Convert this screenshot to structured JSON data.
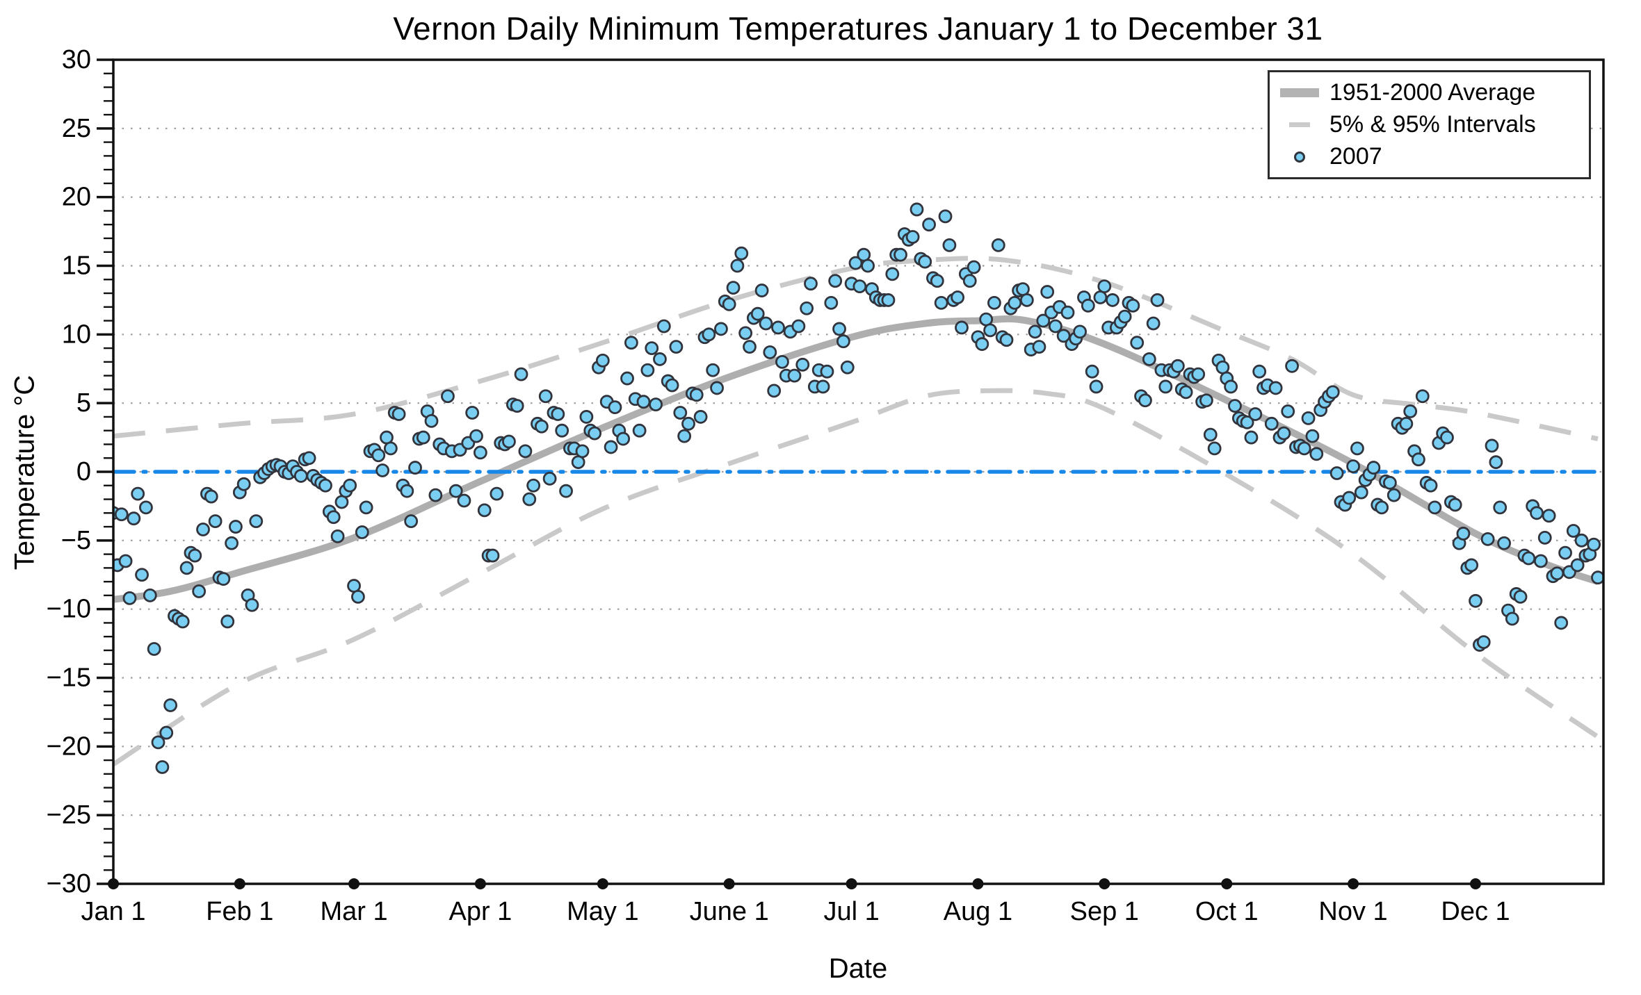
{
  "chart_data": {
    "type": "scatter",
    "title": "Vernon Daily Minimum Temperatures January 1 to December 31",
    "xlabel": "Date",
    "ylabel": "Temperature °C",
    "ylim": [
      -30,
      30
    ],
    "y_major_step": 5,
    "y_minor_step": 1,
    "grid": "dotted horizontal at every 5 °C",
    "legend": {
      "position": "top-right",
      "entries": [
        "1951-2000 Average",
        "5% & 95% Intervals",
        "2007"
      ]
    },
    "colors": {
      "scatter_fill": "#79CEF2",
      "scatter_edge": "#31343C",
      "average_line": "#aeaeae",
      "interval_line": "#c9c9c9",
      "zero_line": "#1787E8",
      "grid_line": "#8a8a8a",
      "axis": "#111111"
    },
    "y_ticks": [
      {
        "v": 30,
        "label": "30"
      },
      {
        "v": 25,
        "label": "25"
      },
      {
        "v": 20,
        "label": "20"
      },
      {
        "v": 15,
        "label": "15"
      },
      {
        "v": 10,
        "label": "10"
      },
      {
        "v": 5,
        "label": "5"
      },
      {
        "v": 0,
        "label": "0"
      },
      {
        "v": -5,
        "label": "−5"
      },
      {
        "v": -10,
        "label": "−10"
      },
      {
        "v": -15,
        "label": "−15"
      },
      {
        "v": -20,
        "label": "−20"
      },
      {
        "v": -25,
        "label": "−25"
      },
      {
        "v": -30,
        "label": "−30"
      }
    ],
    "x_ticks": [
      {
        "day": 1,
        "label": "Jan 1"
      },
      {
        "day": 32,
        "label": "Feb 1"
      },
      {
        "day": 60,
        "label": "Mar 1"
      },
      {
        "day": 91,
        "label": "Apr 1"
      },
      {
        "day": 121,
        "label": "May 1"
      },
      {
        "day": 152,
        "label": "June 1"
      },
      {
        "day": 182,
        "label": "Jul 1"
      },
      {
        "day": 213,
        "label": "Aug 1"
      },
      {
        "day": 244,
        "label": "Sep 1"
      },
      {
        "day": 274,
        "label": "Oct 1"
      },
      {
        "day": 305,
        "label": "Nov 1"
      },
      {
        "day": 335,
        "label": "Dec 1"
      }
    ],
    "series": [
      {
        "name": "1951-2000 Average",
        "type": "line",
        "style": "thick-solid",
        "points": [
          [
            1,
            -9.3
          ],
          [
            15,
            -8.7
          ],
          [
            32,
            -7.3
          ],
          [
            60,
            -4.8
          ],
          [
            91,
            -0.7
          ],
          [
            121,
            3.2
          ],
          [
            152,
            6.9
          ],
          [
            182,
            9.8
          ],
          [
            200,
            10.8
          ],
          [
            213,
            11.0
          ],
          [
            225,
            11.0
          ],
          [
            244,
            9.3
          ],
          [
            274,
            5.2
          ],
          [
            305,
            0.6
          ],
          [
            335,
            -4.5
          ],
          [
            352,
            -6.7
          ],
          [
            365,
            -8.0
          ]
        ]
      },
      {
        "name": "95% Interval",
        "type": "line",
        "style": "dashed",
        "points": [
          [
            1,
            2.6
          ],
          [
            32,
            3.5
          ],
          [
            60,
            4.2
          ],
          [
            91,
            6.6
          ],
          [
            121,
            9.4
          ],
          [
            152,
            12.5
          ],
          [
            182,
            14.8
          ],
          [
            200,
            15.4
          ],
          [
            220,
            15.4
          ],
          [
            244,
            13.8
          ],
          [
            274,
            10.2
          ],
          [
            290,
            8.2
          ],
          [
            305,
            5.6
          ],
          [
            320,
            4.9
          ],
          [
            335,
            4.3
          ],
          [
            365,
            2.4
          ]
        ]
      },
      {
        "name": "5% Interval",
        "type": "line",
        "style": "dashed",
        "points": [
          [
            1,
            -21.3
          ],
          [
            32,
            -15.4
          ],
          [
            60,
            -12.2
          ],
          [
            91,
            -7.4
          ],
          [
            121,
            -2.7
          ],
          [
            152,
            0.6
          ],
          [
            182,
            3.6
          ],
          [
            200,
            5.5
          ],
          [
            215,
            5.9
          ],
          [
            230,
            5.7
          ],
          [
            244,
            4.6
          ],
          [
            274,
            -0.2
          ],
          [
            305,
            -6.0
          ],
          [
            335,
            -13.2
          ],
          [
            365,
            -19.3
          ]
        ]
      },
      {
        "name": "Zero reference",
        "type": "hline",
        "style": "dash-dot",
        "value": 0
      },
      {
        "name": "2007",
        "type": "scatter",
        "daily_min_c": [
          -3.0,
          -6.8,
          -3.1,
          -6.5,
          -9.2,
          -3.4,
          -1.6,
          -7.5,
          -2.6,
          -9.0,
          -12.9,
          -19.7,
          -21.5,
          -19.0,
          -17.0,
          -10.5,
          -10.7,
          -10.9,
          -7.0,
          -5.9,
          -6.1,
          -8.7,
          -4.2,
          -1.6,
          -1.8,
          -3.6,
          -7.7,
          -7.8,
          -10.9,
          -5.2,
          -4.0,
          -1.5,
          -0.9,
          -9.0,
          -9.7,
          -3.6,
          -0.4,
          -0.1,
          0.2,
          0.4,
          0.5,
          0.4,
          0.0,
          -0.1,
          0.4,
          0.0,
          -0.3,
          0.9,
          1.0,
          -0.3,
          -0.6,
          -0.8,
          -1.0,
          -2.9,
          -3.3,
          -4.7,
          -2.2,
          -1.4,
          -1.0,
          -8.3,
          -9.1,
          -4.4,
          -2.6,
          1.5,
          1.6,
          1.2,
          0.1,
          2.5,
          1.7,
          4.3,
          4.2,
          -1.0,
          -1.4,
          -3.6,
          0.3,
          2.4,
          2.5,
          4.4,
          3.7,
          -1.7,
          2.0,
          1.7,
          5.5,
          1.5,
          -1.4,
          1.6,
          -2.1,
          2.1,
          4.3,
          2.6,
          1.4,
          -2.8,
          -6.1,
          -6.1,
          -1.6,
          2.1,
          2.0,
          2.2,
          4.9,
          4.8,
          7.1,
          1.5,
          -2.0,
          -1.0,
          3.5,
          3.3,
          5.5,
          -0.5,
          4.3,
          4.2,
          3.0,
          -1.4,
          1.7,
          1.7,
          0.7,
          1.5,
          4.0,
          3.0,
          2.8,
          7.6,
          8.1,
          5.1,
          1.8,
          4.7,
          3.0,
          2.4,
          6.8,
          9.4,
          5.3,
          3.0,
          5.1,
          7.4,
          9.0,
          4.9,
          8.2,
          10.6,
          6.6,
          6.3,
          9.1,
          4.3,
          2.6,
          3.5,
          5.7,
          5.6,
          4.0,
          9.8,
          10.0,
          7.4,
          6.1,
          10.4,
          12.4,
          12.2,
          13.4,
          15.0,
          15.9,
          10.1,
          9.1,
          11.2,
          11.5,
          13.2,
          10.8,
          8.7,
          5.9,
          10.5,
          8.0,
          7.0,
          10.2,
          7.0,
          10.6,
          7.8,
          11.9,
          13.7,
          6.2,
          7.4,
          6.2,
          7.3,
          12.3,
          13.9,
          10.4,
          9.5,
          7.6,
          13.7,
          15.2,
          13.5,
          15.8,
          15.0,
          13.3,
          12.7,
          12.5,
          12.5,
          12.5,
          14.4,
          15.8,
          15.8,
          17.3,
          16.9,
          17.1,
          19.1,
          15.5,
          15.3,
          18.0,
          14.1,
          13.9,
          12.3,
          18.6,
          16.5,
          12.5,
          12.7,
          10.5,
          14.4,
          13.9,
          14.9,
          9.8,
          9.3,
          11.1,
          10.3,
          12.3,
          16.5,
          9.8,
          9.6,
          11.9,
          12.3,
          13.2,
          13.3,
          12.5,
          8.9,
          10.2,
          9.1,
          11.0,
          13.1,
          11.6,
          10.6,
          12.0,
          9.9,
          11.6,
          9.3,
          9.7,
          10.2,
          12.7,
          12.1,
          7.3,
          6.2,
          12.7,
          13.5,
          10.5,
          12.5,
          10.5,
          10.9,
          11.3,
          12.3,
          12.1,
          9.4,
          5.5,
          5.2,
          8.2,
          10.8,
          12.5,
          7.4,
          6.2,
          7.4,
          7.3,
          7.7,
          6.0,
          5.8,
          7.1,
          6.9,
          7.1,
          5.1,
          5.2,
          2.7,
          1.7,
          8.1,
          7.6,
          6.8,
          6.2,
          4.8,
          3.9,
          3.7,
          3.6,
          2.5,
          4.2,
          7.3,
          6.1,
          6.3,
          3.5,
          6.1,
          2.5,
          2.8,
          4.4,
          7.7,
          1.8,
          1.9,
          1.7,
          3.9,
          2.6,
          1.3,
          4.5,
          5.1,
          5.5,
          5.8,
          -0.1,
          -2.2,
          -2.4,
          -1.9,
          0.4,
          1.7,
          -1.5,
          -0.6,
          -0.2,
          0.3,
          -2.4,
          -2.6,
          -0.7,
          -0.8,
          -1.7,
          3.5,
          3.2,
          3.5,
          4.4,
          1.5,
          0.9,
          5.5,
          -0.8,
          -1.0,
          -2.6,
          2.1,
          2.8,
          2.5,
          -2.2,
          -2.4,
          -5.2,
          -4.5,
          -7.0,
          -6.8,
          -9.4,
          -12.6,
          -12.4,
          -4.9,
          1.9,
          0.7,
          -2.6,
          -5.2,
          -10.1,
          -10.7,
          -8.9,
          -9.1,
          -6.1,
          -6.3,
          -2.5,
          -3.0,
          -6.5,
          -4.8,
          -3.2,
          -7.6,
          -7.4,
          -11.0,
          -5.9,
          -7.3,
          -4.3,
          -6.8,
          -5.0,
          -6.1,
          -6.0,
          -5.3,
          -7.7
        ]
      }
    ]
  }
}
